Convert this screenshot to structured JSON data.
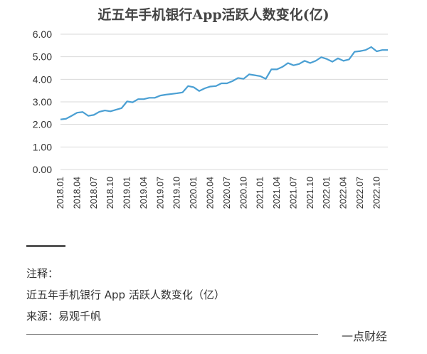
{
  "chart_data": {
    "type": "line",
    "title": "近五年手机银行App活跃人数变化(亿)",
    "xlabel": "",
    "ylabel": "",
    "ylim": [
      0,
      6
    ],
    "yticks": [
      "0.00",
      "1.00",
      "2.00",
      "3.00",
      "4.00",
      "5.00",
      "6.00"
    ],
    "grid": true,
    "x_tick_labels": [
      "2018.01",
      "2018.04",
      "2018.07",
      "2018.10",
      "2019.01",
      "2019.04",
      "2019.07",
      "2019.10",
      "2020.01",
      "2020.04",
      "2020.07",
      "2020.10",
      "2021.01",
      "2021.04",
      "2021.07",
      "2021.10",
      "2022.01",
      "2022.04",
      "2022.07",
      "2022.10"
    ],
    "x": [
      "2018.01",
      "2018.02",
      "2018.03",
      "2018.04",
      "2018.05",
      "2018.06",
      "2018.07",
      "2018.08",
      "2018.09",
      "2018.10",
      "2018.11",
      "2018.12",
      "2019.01",
      "2019.02",
      "2019.03",
      "2019.04",
      "2019.05",
      "2019.06",
      "2019.07",
      "2019.08",
      "2019.09",
      "2019.10",
      "2019.11",
      "2019.12",
      "2020.01",
      "2020.02",
      "2020.03",
      "2020.04",
      "2020.05",
      "2020.06",
      "2020.07",
      "2020.08",
      "2020.09",
      "2020.10",
      "2020.11",
      "2020.12",
      "2021.01",
      "2021.02",
      "2021.03",
      "2021.04",
      "2021.05",
      "2021.06",
      "2021.07",
      "2021.08",
      "2021.09",
      "2021.10",
      "2021.11",
      "2021.12",
      "2022.01",
      "2022.02",
      "2022.03",
      "2022.04",
      "2022.05",
      "2022.06",
      "2022.07",
      "2022.08",
      "2022.09",
      "2022.10",
      "2022.11",
      "2022.12"
    ],
    "series": [
      {
        "name": "",
        "color": "#4a9fd3",
        "values": [
          2.22,
          2.25,
          2.38,
          2.52,
          2.55,
          2.38,
          2.42,
          2.56,
          2.62,
          2.58,
          2.65,
          2.72,
          3.02,
          2.98,
          3.12,
          3.12,
          3.18,
          3.18,
          3.28,
          3.32,
          3.35,
          3.38,
          3.42,
          3.7,
          3.65,
          3.48,
          3.6,
          3.68,
          3.7,
          3.82,
          3.82,
          3.92,
          4.06,
          4.02,
          4.22,
          4.18,
          4.14,
          4.02,
          4.44,
          4.44,
          4.55,
          4.72,
          4.62,
          4.68,
          4.82,
          4.72,
          4.82,
          4.98,
          4.9,
          4.78,
          4.93,
          4.82,
          4.88,
          5.22,
          5.25,
          5.3,
          5.43,
          5.24,
          5.3,
          5.3
        ]
      }
    ]
  },
  "notes": {
    "label": "注释：",
    "text": "近五年手机银行 App 活跃人数变化（亿）",
    "source": "来源：易观千帆"
  },
  "brand": "一点财经"
}
